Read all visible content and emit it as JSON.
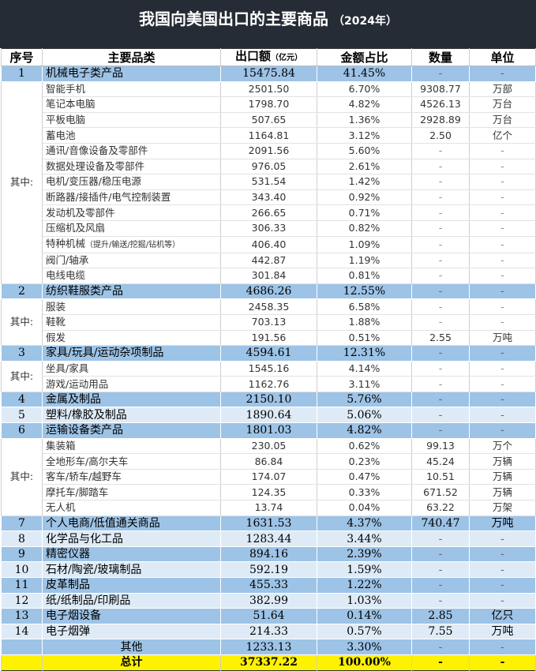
{
  "title": "我国向美国出口的主要商品",
  "title_year": "（2024年）",
  "headers": {
    "no": "序号",
    "category": "主要品类",
    "amount": "出口额",
    "amount_unit": "（亿元）",
    "share": "金额占比",
    "qty": "数量",
    "unit": "单位"
  },
  "subgroup_label": "其中:",
  "colors": {
    "header_bg": "#262c35",
    "row_dark": "#9dc3e6",
    "row_light": "#deebf7",
    "total": "#fff200"
  },
  "groups": [
    {
      "no": "1",
      "name": "机械电子类产品",
      "amount": "15475.84",
      "share": "41.45%",
      "qty": "-",
      "unit": "-",
      "tone": "dark",
      "items": [
        {
          "name": "智能手机",
          "amount": "2501.50",
          "share": "6.70%",
          "qty": "9308.77",
          "unit": "万部"
        },
        {
          "name": "笔记本电脑",
          "amount": "1798.70",
          "share": "4.82%",
          "qty": "4526.13",
          "unit": "万台"
        },
        {
          "name": "平板电脑",
          "amount": "507.65",
          "share": "1.36%",
          "qty": "2928.89",
          "unit": "万台"
        },
        {
          "name": "蓄电池",
          "amount": "1164.81",
          "share": "3.12%",
          "qty": "2.50",
          "unit": "亿个"
        },
        {
          "name": "通讯/音像设备及零部件",
          "amount": "2091.56",
          "share": "5.60%",
          "qty": "-",
          "unit": "-"
        },
        {
          "name": "数据处理设备及零部件",
          "amount": "976.05",
          "share": "2.61%",
          "qty": "-",
          "unit": "-"
        },
        {
          "name": "电机/变压器/稳压电源",
          "amount": "531.54",
          "share": "1.42%",
          "qty": "-",
          "unit": "-"
        },
        {
          "name": "断路器/接插件/电气控制装置",
          "amount": "343.40",
          "share": "0.92%",
          "qty": "-",
          "unit": "-"
        },
        {
          "name": "发动机及零部件",
          "amount": "266.65",
          "share": "0.71%",
          "qty": "-",
          "unit": "-"
        },
        {
          "name": "压缩机及风扇",
          "amount": "306.33",
          "share": "0.82%",
          "qty": "-",
          "unit": "-"
        },
        {
          "name": "特种机械",
          "note": "（提升/输送/挖掘/钻机等）",
          "amount": "406.40",
          "share": "1.09%",
          "qty": "-",
          "unit": "-"
        },
        {
          "name": "阀门/轴承",
          "amount": "442.87",
          "share": "1.19%",
          "qty": "-",
          "unit": "-"
        },
        {
          "name": "电线电缆",
          "amount": "301.84",
          "share": "0.81%",
          "qty": "-",
          "unit": "-"
        }
      ]
    },
    {
      "no": "2",
      "name": "纺织鞋服类产品",
      "amount": "4686.26",
      "share": "12.55%",
      "qty": "-",
      "unit": "-",
      "tone": "dark",
      "items": [
        {
          "name": "服装",
          "amount": "2458.35",
          "share": "6.58%",
          "qty": "-",
          "unit": "-"
        },
        {
          "name": "鞋靴",
          "amount": "703.13",
          "share": "1.88%",
          "qty": "-",
          "unit": "-"
        },
        {
          "name": "假发",
          "amount": "191.56",
          "share": "0.51%",
          "qty": "2.55",
          "unit": "万吨"
        }
      ]
    },
    {
      "no": "3",
      "name": "家具/玩具/运动杂项制品",
      "amount": "4594.61",
      "share": "12.31%",
      "qty": "-",
      "unit": "-",
      "tone": "dark",
      "items": [
        {
          "name": "坐具/家具",
          "amount": "1545.16",
          "share": "4.14%",
          "qty": "-",
          "unit": "-"
        },
        {
          "name": "游戏/运动用品",
          "amount": "1162.76",
          "share": "3.11%",
          "qty": "-",
          "unit": "-"
        }
      ]
    },
    {
      "no": "4",
      "name": "金属及制品",
      "amount": "2150.10",
      "share": "5.76%",
      "qty": "-",
      "unit": "-",
      "tone": "dark",
      "items": []
    },
    {
      "no": "5",
      "name": "塑料/橡胶及制品",
      "amount": "1890.64",
      "share": "5.06%",
      "qty": "-",
      "unit": "-",
      "tone": "light",
      "items": []
    },
    {
      "no": "6",
      "name": "运输设备类产品",
      "amount": "1801.03",
      "share": "4.82%",
      "qty": "-",
      "unit": "-",
      "tone": "dark",
      "items": [
        {
          "name": "集装箱",
          "amount": "230.05",
          "share": "0.62%",
          "qty": "99.13",
          "unit": "万个"
        },
        {
          "name": "全地形车/高尔夫车",
          "amount": "86.84",
          "share": "0.23%",
          "qty": "45.24",
          "unit": "万辆"
        },
        {
          "name": "客车/轿车/越野车",
          "amount": "174.07",
          "share": "0.47%",
          "qty": "10.51",
          "unit": "万辆"
        },
        {
          "name": "摩托车/脚踏车",
          "amount": "124.35",
          "share": "0.33%",
          "qty": "671.52",
          "unit": "万辆"
        },
        {
          "name": "无人机",
          "amount": "13.74",
          "share": "0.04%",
          "qty": "63.22",
          "unit": "万架"
        }
      ]
    },
    {
      "no": "7",
      "name": "个人电商/低值通关商品",
      "amount": "1631.53",
      "share": "4.37%",
      "qty": "740.47",
      "unit": "万吨",
      "tone": "dark",
      "items": []
    },
    {
      "no": "8",
      "name": "化学品与化工品",
      "amount": "1283.44",
      "share": "3.44%",
      "qty": "-",
      "unit": "-",
      "tone": "light",
      "items": []
    },
    {
      "no": "9",
      "name": "精密仪器",
      "amount": "894.16",
      "share": "2.39%",
      "qty": "-",
      "unit": "-",
      "tone": "dark",
      "items": []
    },
    {
      "no": "10",
      "name": "石材/陶瓷/玻璃制品",
      "amount": "592.19",
      "share": "1.59%",
      "qty": "-",
      "unit": "-",
      "tone": "light",
      "items": []
    },
    {
      "no": "11",
      "name": "皮革制品",
      "amount": "455.33",
      "share": "1.22%",
      "qty": "-",
      "unit": "-",
      "tone": "dark",
      "items": []
    },
    {
      "no": "12",
      "name": "纸/纸制品/印刷品",
      "amount": "382.99",
      "share": "1.03%",
      "qty": "-",
      "unit": "-",
      "tone": "light",
      "items": []
    },
    {
      "no": "13",
      "name": "电子烟设备",
      "amount": "51.64",
      "share": "0.14%",
      "qty": "2.85",
      "unit": "亿只",
      "tone": "dark",
      "items": []
    },
    {
      "no": "14",
      "name": "电子烟弹",
      "amount": "214.33",
      "share": "0.57%",
      "qty": "7.55",
      "unit": "万吨",
      "tone": "light",
      "items": []
    }
  ],
  "other": {
    "name": "其他",
    "amount": "1233.13",
    "share": "3.30%",
    "qty": "-",
    "unit": "-"
  },
  "total": {
    "name": "总计",
    "amount": "37337.22",
    "share": "100.00%",
    "qty": "-",
    "unit": "-"
  }
}
